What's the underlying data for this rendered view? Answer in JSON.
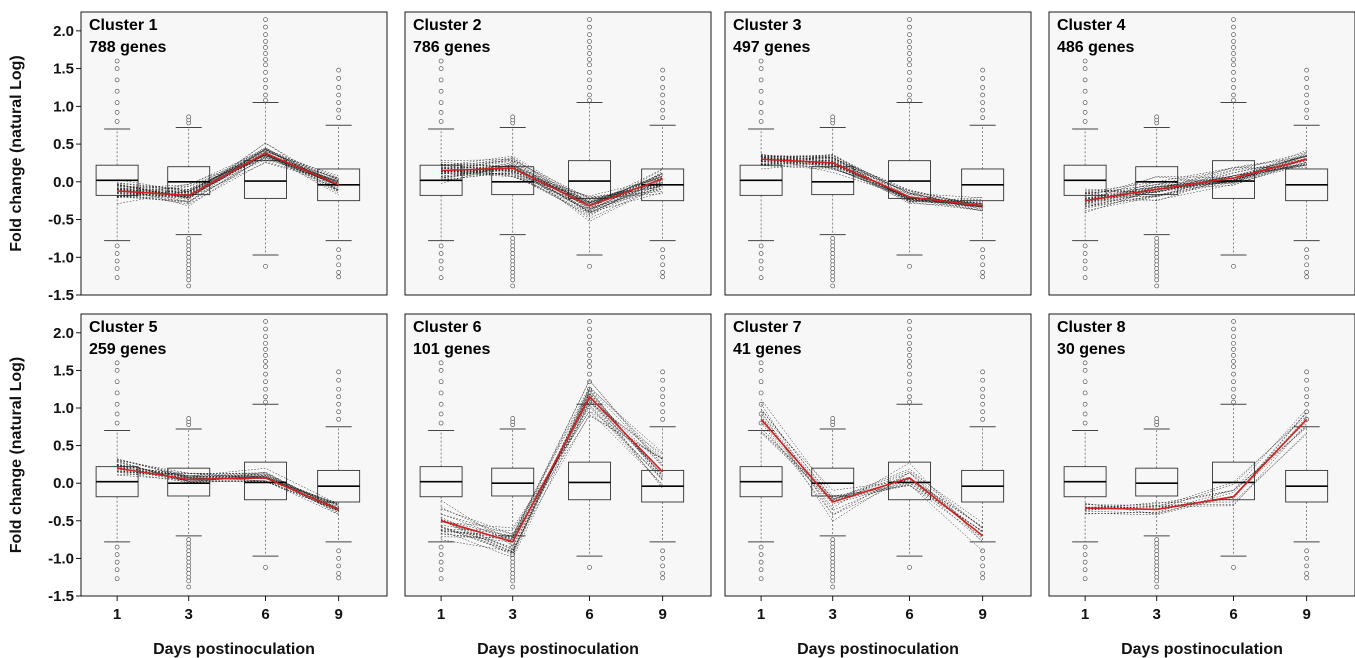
{
  "chart_data": {
    "type": "box-and-line",
    "layout": "2x4 small multiples",
    "xlabel": "Days postinoculation",
    "ylabel": "Fold change (natural Log)",
    "x_categories": [
      "1",
      "3",
      "6",
      "9"
    ],
    "ylim": [
      -1.5,
      2.25
    ],
    "y_ticks": [
      "2.0",
      "1.5",
      "1.0",
      "0.5",
      "0.0",
      "-0.5",
      "-1.0",
      "-1.5"
    ],
    "y_tick_values": [
      2.0,
      1.5,
      1.0,
      0.5,
      0.0,
      -0.5,
      -1.0,
      -1.5
    ],
    "grid": false,
    "centroid_color": "#d62020",
    "boxplot": [
      {
        "day": "1",
        "q1": -0.18,
        "median": 0.02,
        "q3": 0.22,
        "whisker_low": -0.78,
        "whisker_high": 0.7,
        "outliers_low": [
          -0.85,
          -0.95,
          -1.05,
          -1.15,
          -1.27
        ],
        "outliers_high": [
          0.8,
          0.92,
          1.05,
          1.2,
          1.35,
          1.5,
          1.6
        ]
      },
      {
        "day": "3",
        "q1": -0.17,
        "median": 0.0,
        "q3": 0.2,
        "whisker_low": -0.7,
        "whisker_high": 0.72,
        "outliers_low": [
          -0.75,
          -0.8,
          -0.85,
          -0.9,
          -0.95,
          -1.0,
          -1.05,
          -1.1,
          -1.15,
          -1.2,
          -1.25,
          -1.3,
          -1.38
        ],
        "outliers_high": [
          0.78,
          0.82,
          0.86
        ]
      },
      {
        "day": "6",
        "q1": -0.22,
        "median": 0.01,
        "q3": 0.28,
        "whisker_low": -0.97,
        "whisker_high": 1.05,
        "outliers_low": [
          -1.12
        ],
        "outliers_high": [
          1.08,
          1.15,
          1.25,
          1.35,
          1.45,
          1.55,
          1.62,
          1.7,
          1.78,
          1.86,
          1.95,
          2.05,
          2.15
        ]
      },
      {
        "day": "9",
        "q1": -0.25,
        "median": -0.04,
        "q3": 0.17,
        "whisker_low": -0.78,
        "whisker_high": 0.75,
        "outliers_low": [
          -0.9,
          -1.0,
          -1.1,
          -1.2,
          -1.26
        ],
        "outliers_high": [
          0.85,
          0.95,
          1.05,
          1.15,
          1.25,
          1.37,
          1.48
        ]
      }
    ],
    "clusters": [
      {
        "name": "Cluster 1",
        "genes": "788 genes",
        "centroid": [
          -0.12,
          -0.18,
          0.38,
          -0.04
        ],
        "spread": [
          0.15,
          0.15,
          0.15,
          0.15
        ],
        "n_profiles": 40
      },
      {
        "name": "Cluster 2",
        "genes": "786 genes",
        "centroid": [
          0.15,
          0.18,
          -0.32,
          0.04
        ],
        "spread": [
          0.18,
          0.15,
          0.18,
          0.18
        ],
        "n_profiles": 40
      },
      {
        "name": "Cluster 3",
        "genes": "497 genes",
        "centroid": [
          0.3,
          0.25,
          -0.2,
          -0.32
        ],
        "spread": [
          0.12,
          0.12,
          0.1,
          0.1
        ],
        "n_profiles": 34
      },
      {
        "name": "Cluster 4",
        "genes": "486 genes",
        "centroid": [
          -0.25,
          -0.1,
          0.05,
          0.3
        ],
        "spread": [
          0.2,
          0.18,
          0.15,
          0.12
        ],
        "n_profiles": 34
      },
      {
        "name": "Cluster 5",
        "genes": "259 genes",
        "centroid": [
          0.2,
          0.05,
          0.07,
          -0.35
        ],
        "spread": [
          0.15,
          0.12,
          0.12,
          0.1
        ],
        "n_profiles": 28
      },
      {
        "name": "Cluster 6",
        "genes": "101 genes",
        "centroid": [
          -0.5,
          -0.78,
          1.15,
          0.15
        ],
        "spread": [
          0.25,
          0.25,
          0.35,
          0.3
        ],
        "n_profiles": 26
      },
      {
        "name": "Cluster 7",
        "genes": "41 genes",
        "centroid": [
          0.85,
          -0.25,
          0.07,
          -0.7
        ],
        "spread": [
          0.3,
          0.28,
          0.2,
          0.2
        ],
        "n_profiles": 16
      },
      {
        "name": "Cluster 8",
        "genes": "30 genes",
        "centroid": [
          -0.33,
          -0.35,
          -0.18,
          0.85
        ],
        "spread": [
          0.12,
          0.15,
          0.2,
          0.25
        ],
        "n_profiles": 14
      }
    ]
  }
}
